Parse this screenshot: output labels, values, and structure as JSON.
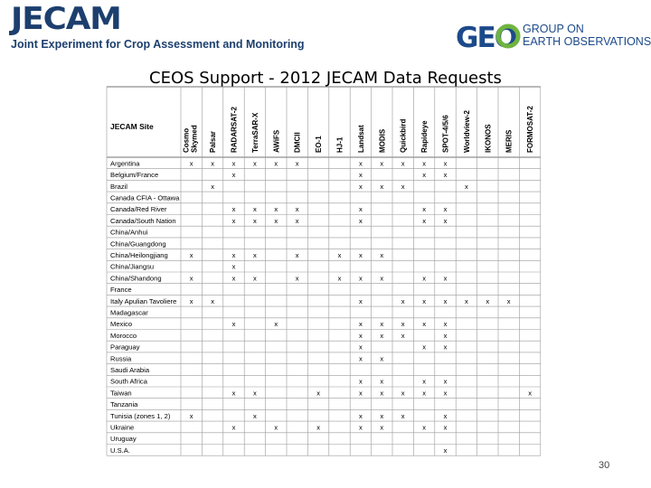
{
  "header": {
    "logo_word": "JECAM",
    "logo_subtitle": "Joint Experiment for Crop Assessment and Monitoring",
    "geo_logo_mark": "GEO",
    "geo_line1": "GROUP ON",
    "geo_line2": "EARTH OBSERVATIONS"
  },
  "title": "CEOS Support - 2012 JECAM Data Requests",
  "page_number": "30",
  "colors": {
    "brand_navy": "#1c3f6e",
    "geo_blue": "#1c4a8a",
    "geo_green": "#6fb43f",
    "grid": "#9a9a9a"
  },
  "table": {
    "site_header": "JECAM Site",
    "columns": [
      "Cosmo Skymed",
      "Palsar",
      "RADARSAT-2",
      "TerraSAR-X",
      "AWiFS",
      "DMCII",
      "EO-1",
      "HJ-1",
      "Landsat",
      "MODIS",
      "Quickbird",
      "Rapideye",
      "SPOT-4/5/6",
      "Worldview-2",
      "IKONOS",
      "MERIS",
      "FORMOSAT-2"
    ],
    "rows": [
      {
        "site": "Argentina",
        "cells": [
          1,
          1,
          1,
          1,
          1,
          1,
          0,
          0,
          1,
          1,
          1,
          1,
          1,
          0,
          0,
          0,
          0
        ]
      },
      {
        "site": "Belgium/France",
        "cells": [
          0,
          0,
          1,
          0,
          0,
          0,
          0,
          0,
          1,
          0,
          0,
          1,
          1,
          0,
          0,
          0,
          0
        ]
      },
      {
        "site": "Brazil",
        "cells": [
          0,
          1,
          0,
          0,
          0,
          0,
          0,
          0,
          1,
          1,
          1,
          0,
          0,
          1,
          0,
          0,
          0
        ]
      },
      {
        "site": "Canada CFIA - Ottawa",
        "cells": [
          0,
          0,
          0,
          0,
          0,
          0,
          0,
          0,
          0,
          0,
          0,
          0,
          0,
          0,
          0,
          0,
          0
        ]
      },
      {
        "site": "Canada/Red River",
        "cells": [
          0,
          0,
          1,
          1,
          1,
          1,
          0,
          0,
          1,
          0,
          0,
          1,
          1,
          0,
          0,
          0,
          0
        ]
      },
      {
        "site": "Canada/South Nation",
        "cells": [
          0,
          0,
          1,
          1,
          1,
          1,
          0,
          0,
          1,
          0,
          0,
          1,
          1,
          0,
          0,
          0,
          0
        ]
      },
      {
        "site": "China/Anhui",
        "cells": [
          0,
          0,
          0,
          0,
          0,
          0,
          0,
          0,
          0,
          0,
          0,
          0,
          0,
          0,
          0,
          0,
          0
        ]
      },
      {
        "site": "China/Guangdong",
        "cells": [
          0,
          0,
          0,
          0,
          0,
          0,
          0,
          0,
          0,
          0,
          0,
          0,
          0,
          0,
          0,
          0,
          0
        ]
      },
      {
        "site": "China/Heilongjiang",
        "cells": [
          1,
          0,
          1,
          1,
          0,
          1,
          0,
          1,
          1,
          1,
          0,
          0,
          0,
          0,
          0,
          0,
          0
        ]
      },
      {
        "site": "China/Jiangsu",
        "cells": [
          0,
          0,
          1,
          0,
          0,
          0,
          0,
          0,
          0,
          0,
          0,
          0,
          0,
          0,
          0,
          0,
          0
        ]
      },
      {
        "site": "China/Shandong",
        "cells": [
          1,
          0,
          1,
          1,
          0,
          1,
          0,
          1,
          1,
          1,
          0,
          1,
          1,
          0,
          0,
          0,
          0
        ]
      },
      {
        "site": "France",
        "cells": [
          0,
          0,
          0,
          0,
          0,
          0,
          0,
          0,
          0,
          0,
          0,
          0,
          0,
          0,
          0,
          0,
          0
        ]
      },
      {
        "site": "Italy Apulian Tavoliere",
        "cells": [
          1,
          1,
          0,
          0,
          0,
          0,
          0,
          0,
          1,
          0,
          1,
          1,
          1,
          1,
          1,
          1,
          0
        ]
      },
      {
        "site": "Madagascar",
        "cells": [
          0,
          0,
          0,
          0,
          0,
          0,
          0,
          0,
          0,
          0,
          0,
          0,
          0,
          0,
          0,
          0,
          0
        ]
      },
      {
        "site": "Mexico",
        "cells": [
          0,
          0,
          1,
          0,
          1,
          0,
          0,
          0,
          1,
          1,
          1,
          1,
          1,
          0,
          0,
          0,
          0
        ]
      },
      {
        "site": "Morocco",
        "cells": [
          0,
          0,
          0,
          0,
          0,
          0,
          0,
          0,
          1,
          1,
          1,
          0,
          1,
          0,
          0,
          0,
          0
        ]
      },
      {
        "site": "Paraguay",
        "cells": [
          0,
          0,
          0,
          0,
          0,
          0,
          0,
          0,
          1,
          0,
          0,
          1,
          1,
          0,
          0,
          0,
          0
        ]
      },
      {
        "site": "Russia",
        "cells": [
          0,
          0,
          0,
          0,
          0,
          0,
          0,
          0,
          1,
          1,
          0,
          0,
          0,
          0,
          0,
          0,
          0
        ]
      },
      {
        "site": "Saudi Arabia",
        "cells": [
          0,
          0,
          0,
          0,
          0,
          0,
          0,
          0,
          0,
          0,
          0,
          0,
          0,
          0,
          0,
          0,
          0
        ]
      },
      {
        "site": "South Africa",
        "cells": [
          0,
          0,
          0,
          0,
          0,
          0,
          0,
          0,
          1,
          1,
          0,
          1,
          1,
          0,
          0,
          0,
          0
        ]
      },
      {
        "site": "Taiwan",
        "cells": [
          0,
          0,
          1,
          1,
          0,
          0,
          1,
          0,
          1,
          1,
          1,
          1,
          1,
          0,
          0,
          0,
          1
        ]
      },
      {
        "site": "Tanzania",
        "cells": [
          0,
          0,
          0,
          0,
          0,
          0,
          0,
          0,
          0,
          0,
          0,
          0,
          0,
          0,
          0,
          0,
          0
        ]
      },
      {
        "site": "Tunisia (zones 1, 2)",
        "cells": [
          1,
          0,
          0,
          1,
          0,
          0,
          0,
          0,
          1,
          1,
          1,
          0,
          1,
          0,
          0,
          0,
          0
        ]
      },
      {
        "site": "Ukraine",
        "cells": [
          0,
          0,
          1,
          0,
          1,
          0,
          1,
          0,
          1,
          1,
          0,
          1,
          1,
          0,
          0,
          0,
          0
        ]
      },
      {
        "site": "Uruguay",
        "cells": [
          0,
          0,
          0,
          0,
          0,
          0,
          0,
          0,
          0,
          0,
          0,
          0,
          0,
          0,
          0,
          0,
          0
        ]
      },
      {
        "site": "U.S.A.",
        "cells": [
          0,
          0,
          0,
          0,
          0,
          0,
          0,
          0,
          0,
          0,
          0,
          0,
          1,
          0,
          0,
          0,
          0
        ]
      }
    ],
    "mark": "x"
  }
}
